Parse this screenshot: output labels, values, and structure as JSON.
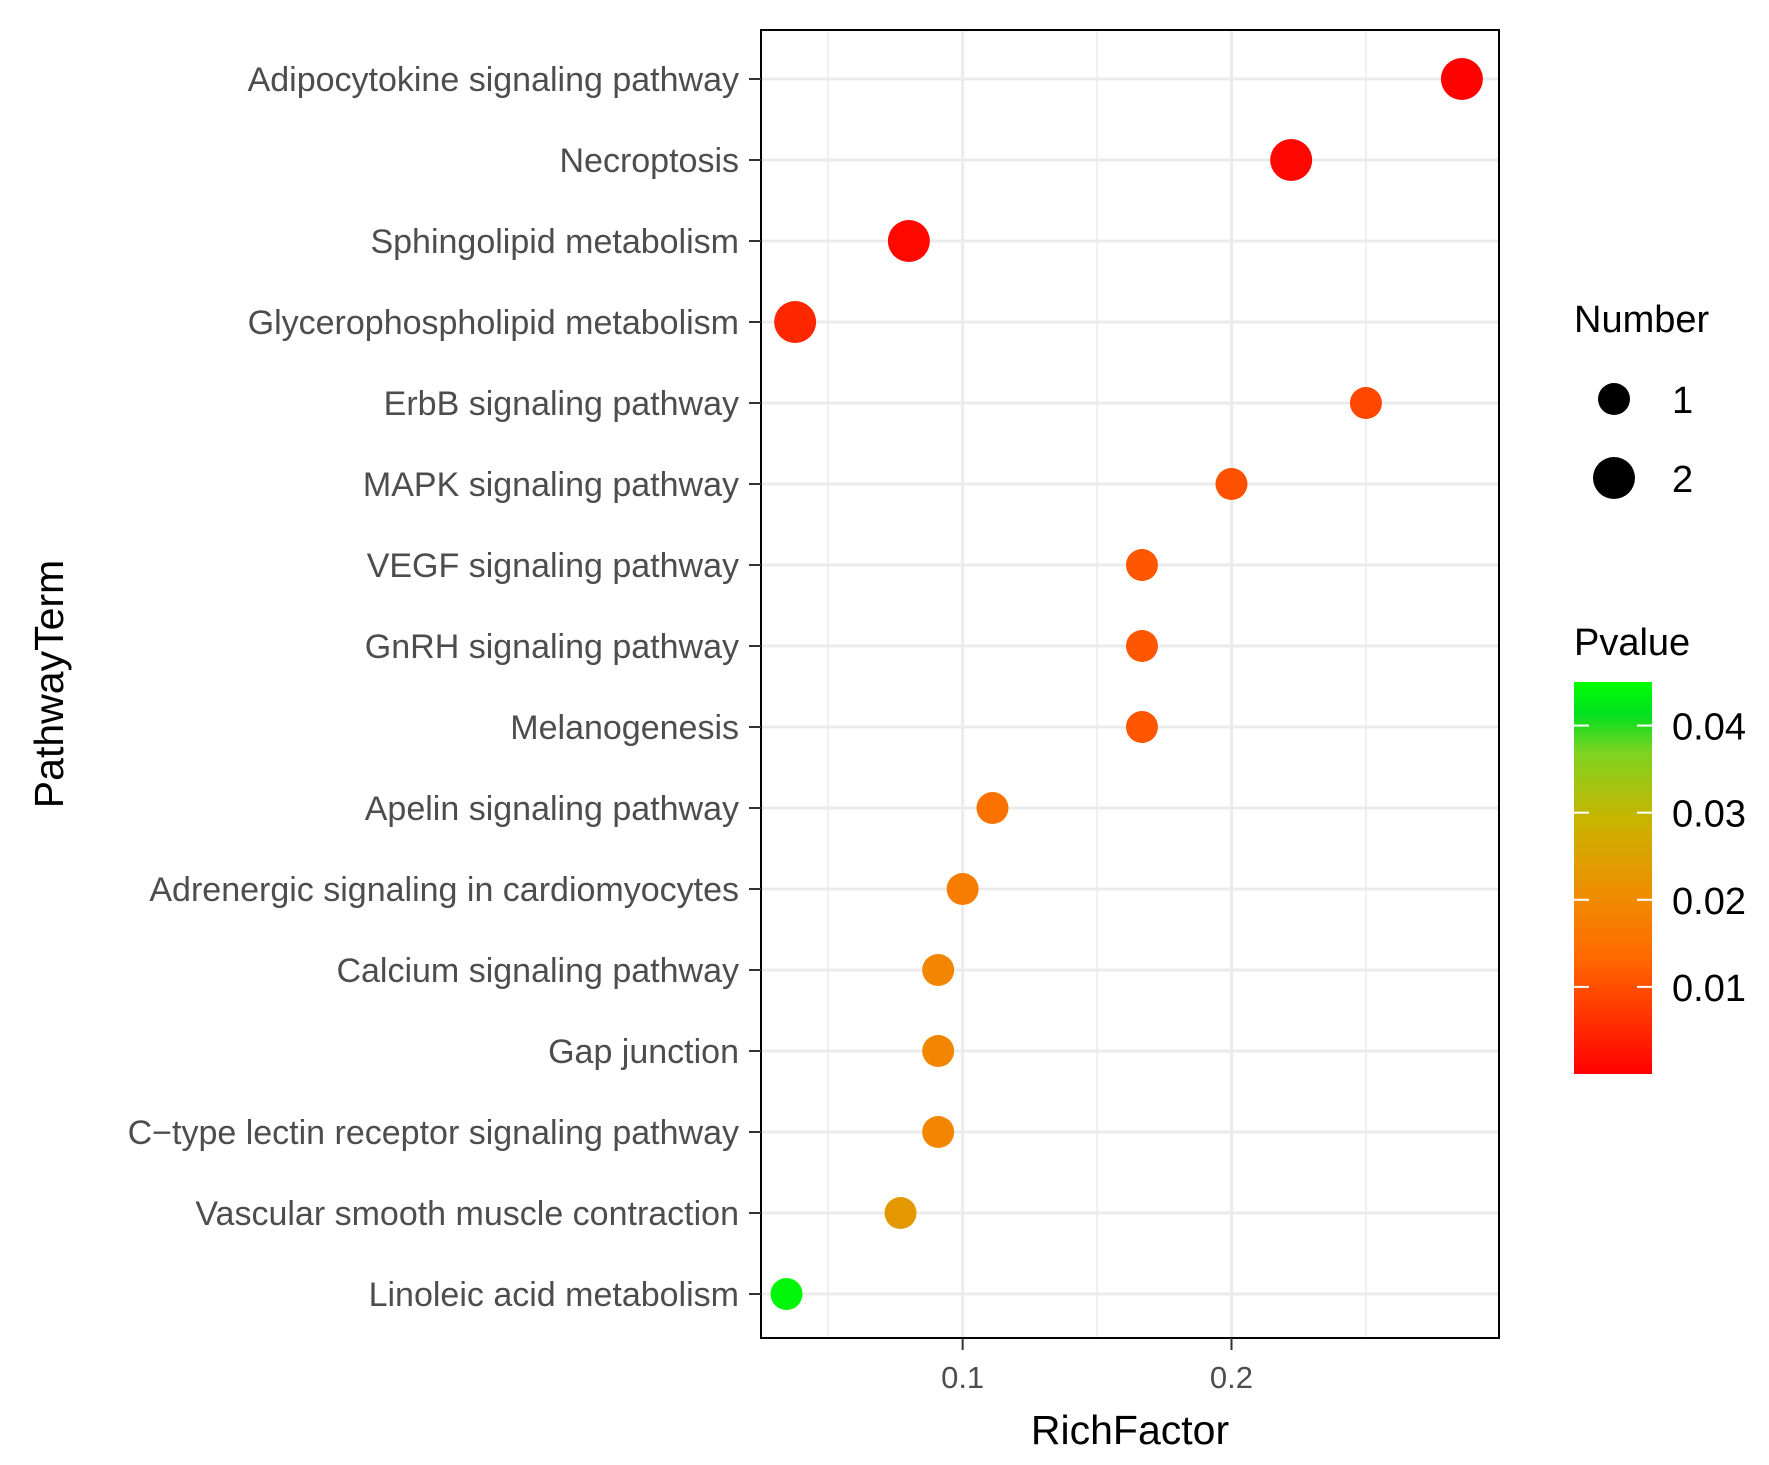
{
  "chart_data": {
    "type": "scatter",
    "title": "",
    "xlabel": "RichFactor",
    "ylabel": "PathwayTerm",
    "xlim": [
      0.025,
      0.2995
    ],
    "xticks": [
      0.1,
      0.2
    ],
    "xtick_labels": [
      "0.1",
      "0.2"
    ],
    "x_minor_gridlines": [
      0.05,
      0.15,
      0.25
    ],
    "grid": true,
    "categories": [
      "Adipocytokine signaling pathway",
      "Necroptosis",
      "Sphingolipid metabolism",
      "Glycerophospholipid metabolism",
      "ErbB signaling pathway",
      "MAPK signaling pathway",
      "VEGF signaling pathway",
      "GnRH signaling pathway",
      "Melanogenesis",
      "Apelin signaling pathway",
      "Adrenergic signaling in cardiomyocytes",
      "Calcium signaling pathway",
      "Gap junction",
      "C−type lectin receptor signaling pathway",
      "Vascular smooth muscle contraction",
      "Linoleic acid metabolism"
    ],
    "points": [
      {
        "term": "Adipocytokine signaling pathway",
        "rich_factor": 0.2857,
        "number": 2,
        "pvalue": 0.0004
      },
      {
        "term": "Necroptosis",
        "rich_factor": 0.2222,
        "number": 2,
        "pvalue": 0.0008
      },
      {
        "term": "Sphingolipid metabolism",
        "rich_factor": 0.08,
        "number": 2,
        "pvalue": 0.001
      },
      {
        "term": "Glycerophospholipid metabolism",
        "rich_factor": 0.0377,
        "number": 2,
        "pvalue": 0.005
      },
      {
        "term": "ErbB signaling pathway",
        "rich_factor": 0.25,
        "number": 1,
        "pvalue": 0.009
      },
      {
        "term": "MAPK signaling pathway",
        "rich_factor": 0.2,
        "number": 1,
        "pvalue": 0.01
      },
      {
        "term": "VEGF signaling pathway",
        "rich_factor": 0.1667,
        "number": 1,
        "pvalue": 0.011
      },
      {
        "term": "GnRH signaling pathway",
        "rich_factor": 0.1667,
        "number": 1,
        "pvalue": 0.011
      },
      {
        "term": "Melanogenesis",
        "rich_factor": 0.1667,
        "number": 1,
        "pvalue": 0.011
      },
      {
        "term": "Apelin signaling pathway",
        "rich_factor": 0.1111,
        "number": 1,
        "pvalue": 0.015
      },
      {
        "term": "Adrenergic signaling in cardiomyocytes",
        "rich_factor": 0.1,
        "number": 1,
        "pvalue": 0.017
      },
      {
        "term": "Calcium signaling pathway",
        "rich_factor": 0.0909,
        "number": 1,
        "pvalue": 0.019
      },
      {
        "term": "Gap junction",
        "rich_factor": 0.0909,
        "number": 1,
        "pvalue": 0.019
      },
      {
        "term": "C−type lectin receptor signaling pathway",
        "rich_factor": 0.0909,
        "number": 1,
        "pvalue": 0.019
      },
      {
        "term": "Vascular smooth muscle contraction",
        "rich_factor": 0.0769,
        "number": 1,
        "pvalue": 0.023
      },
      {
        "term": "Linoleic acid metabolism",
        "rich_factor": 0.0345,
        "number": 1,
        "pvalue": 0.044
      }
    ],
    "size_legend": {
      "title": "Number",
      "entries": [
        {
          "label": "1",
          "value": 1
        },
        {
          "label": "2",
          "value": 2
        }
      ]
    },
    "color_legend": {
      "title": "Pvalue",
      "range": [
        0.0,
        0.045
      ],
      "ticks": [
        0.01,
        0.02,
        0.03,
        0.04
      ],
      "tick_labels": [
        "0.01",
        "0.02",
        "0.03",
        "0.04"
      ],
      "low_color": "#ff0000",
      "mid_color": "#ff8c00",
      "high_color": "#00ff00"
    },
    "colors": {
      "panel_border": "#000000",
      "grid": "#ebebeb",
      "axis_text": "#4d4d4d",
      "title_text": "#000000"
    }
  }
}
